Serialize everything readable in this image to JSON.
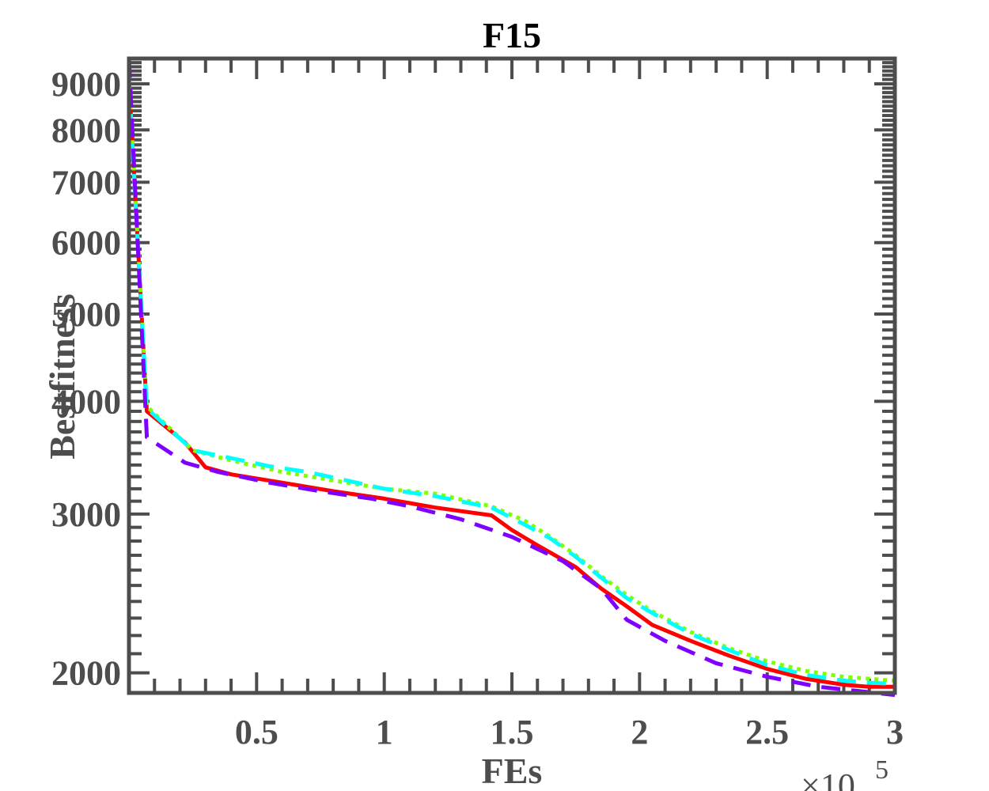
{
  "chart_data": {
    "type": "line",
    "title": "F15",
    "xlabel": "FEs",
    "ylabel": "Bestfitness",
    "x_multiplier": "×10^5",
    "x_multiplier_base": "×10",
    "x_multiplier_exp": "5",
    "xlim": [
      0.0,
      3.0
    ],
    "ylim": [
      1900,
      9600
    ],
    "yscale": "log",
    "grid": false,
    "x_ticks": [
      0.5,
      1,
      1.5,
      2,
      2.5,
      3
    ],
    "x_tick_labels": [
      "0.5",
      "1",
      "1.5",
      "2",
      "2.5",
      "3"
    ],
    "y_ticks": [
      2000,
      3000,
      4000,
      5000,
      6000,
      7000,
      8000,
      9000
    ],
    "y_tick_labels": [
      "2000",
      "3000",
      "4000",
      "5000",
      "6000",
      "7000",
      "8000",
      "9000"
    ],
    "series": [
      {
        "color": "#ff0000",
        "style": "solid",
        "x": [
          0.0,
          0.07,
          0.22,
          0.3,
          0.4,
          0.6,
          0.8,
          1.0,
          1.2,
          1.42,
          1.5,
          1.6,
          1.75,
          1.85,
          1.95,
          2.05,
          2.2,
          2.35,
          2.5,
          2.65,
          2.8,
          2.9,
          3.0
        ],
        "y": [
          9100,
          3900,
          3600,
          3380,
          3320,
          3250,
          3180,
          3120,
          3050,
          2990,
          2880,
          2770,
          2620,
          2480,
          2370,
          2260,
          2170,
          2090,
          2020,
          1970,
          1940,
          1930,
          1930
        ]
      },
      {
        "color": "#80ff00",
        "style": "dotted",
        "x": [
          0.0,
          0.07,
          0.25,
          0.4,
          0.6,
          0.8,
          1.0,
          1.2,
          1.42,
          1.55,
          1.65,
          1.75,
          1.85,
          1.95,
          2.05,
          2.2,
          2.35,
          2.5,
          2.65,
          2.8,
          2.9,
          3.0
        ],
        "y": [
          9100,
          3950,
          3530,
          3440,
          3340,
          3270,
          3200,
          3160,
          3060,
          2950,
          2830,
          2700,
          2560,
          2440,
          2340,
          2220,
          2130,
          2060,
          2010,
          1980,
          1970,
          1960
        ]
      },
      {
        "color": "#00ffff",
        "style": "dashed",
        "x": [
          0.0,
          0.07,
          0.25,
          0.4,
          0.55,
          0.7,
          0.85,
          1.0,
          1.2,
          1.42,
          1.55,
          1.65,
          1.75,
          1.85,
          1.95,
          2.05,
          2.2,
          2.35,
          2.5,
          2.65,
          2.8,
          2.9,
          3.0
        ],
        "y": [
          9000,
          3930,
          3530,
          3460,
          3390,
          3340,
          3270,
          3200,
          3140,
          3050,
          2920,
          2820,
          2690,
          2550,
          2420,
          2330,
          2210,
          2120,
          2040,
          1990,
          1960,
          1950,
          1945
        ]
      },
      {
        "color": "#7f00ff",
        "style": "dashed",
        "x": [
          0.0,
          0.07,
          0.22,
          0.35,
          0.55,
          0.75,
          0.95,
          1.1,
          1.3,
          1.5,
          1.7,
          1.85,
          1.95,
          2.1,
          2.3,
          2.5,
          2.7,
          2.85,
          3.0
        ],
        "y": [
          9600,
          3650,
          3420,
          3340,
          3250,
          3180,
          3120,
          3060,
          2960,
          2830,
          2660,
          2480,
          2290,
          2170,
          2050,
          1980,
          1930,
          1910,
          1890
        ]
      }
    ]
  }
}
